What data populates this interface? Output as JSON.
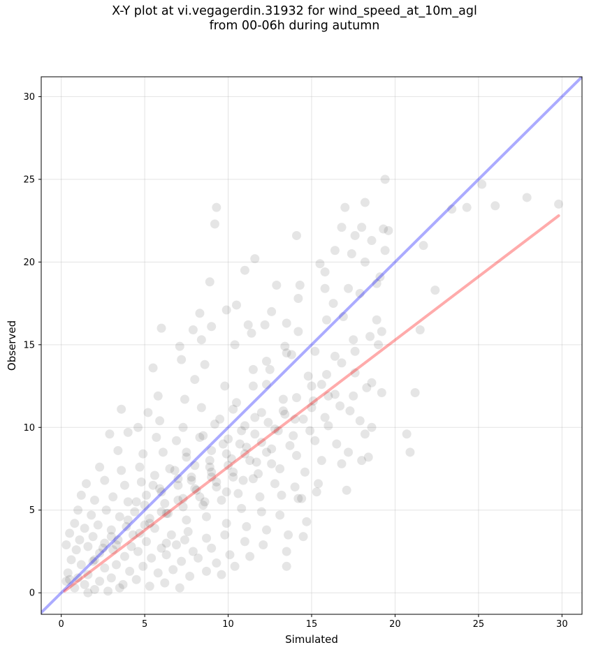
{
  "chart_data": {
    "type": "scatter",
    "title_lines": [
      "X-Y plot at vi.vegagerdin.31932 for wind_speed_at_10m_agl",
      "from 00-06h during autumn"
    ],
    "xlabel": "Simulated",
    "ylabel": "Observed",
    "xlim": [
      -1.2,
      31.2
    ],
    "ylim": [
      -1.3,
      31.2
    ],
    "xticks": [
      0,
      5,
      10,
      15,
      20,
      25,
      30
    ],
    "yticks": [
      0,
      5,
      10,
      15,
      20,
      25,
      30
    ],
    "grid": true,
    "point_color": "#000000",
    "identity_line": {
      "name": "1:1 line",
      "color": "#0000ff",
      "from": [
        -1.2,
        -1.2
      ],
      "to": [
        31.2,
        31.2
      ]
    },
    "fit_line": {
      "name": "regression line",
      "color": "#ff0000",
      "from": [
        0.2,
        0.1
      ],
      "to": [
        29.8,
        22.8
      ]
    },
    "points": [
      [
        23.4,
        23.2
      ],
      [
        24.3,
        23.3
      ],
      [
        19.4,
        25.0
      ],
      [
        25.2,
        24.7
      ],
      [
        26.0,
        23.4
      ],
      [
        27.9,
        23.9
      ],
      [
        29.8,
        23.5
      ],
      [
        22.4,
        18.3
      ],
      [
        21.7,
        21.0
      ],
      [
        21.5,
        15.9
      ],
      [
        21.2,
        12.1
      ],
      [
        20.7,
        9.6
      ],
      [
        20.9,
        8.5
      ],
      [
        18.2,
        23.6
      ],
      [
        17.0,
        23.3
      ],
      [
        9.3,
        23.3
      ],
      [
        9.2,
        22.3
      ],
      [
        14.1,
        21.6
      ],
      [
        11.6,
        20.2
      ],
      [
        11.0,
        19.5
      ],
      [
        8.9,
        18.8
      ],
      [
        12.9,
        18.6
      ],
      [
        19.3,
        22.0
      ],
      [
        19.6,
        21.9
      ],
      [
        18.0,
        22.1
      ],
      [
        16.8,
        22.1
      ],
      [
        17.6,
        21.6
      ],
      [
        18.6,
        21.3
      ],
      [
        16.4,
        20.7
      ],
      [
        17.4,
        20.5
      ],
      [
        19.4,
        20.7
      ],
      [
        18.2,
        20.0
      ],
      [
        19.1,
        19.1
      ],
      [
        15.5,
        19.9
      ],
      [
        15.8,
        19.4
      ],
      [
        14.3,
        18.6
      ],
      [
        17.2,
        18.4
      ],
      [
        17.9,
        18.1
      ],
      [
        15.8,
        18.4
      ],
      [
        18.9,
        18.7
      ],
      [
        9.9,
        17.1
      ],
      [
        10.5,
        17.4
      ],
      [
        14.2,
        17.8
      ],
      [
        16.3,
        17.5
      ],
      [
        12.6,
        17.0
      ],
      [
        13.5,
        16.3
      ],
      [
        16.9,
        16.7
      ],
      [
        18.9,
        16.5
      ],
      [
        8.3,
        16.9
      ],
      [
        9.0,
        16.1
      ],
      [
        11.2,
        16.2
      ],
      [
        12.2,
        16.2
      ],
      [
        15.9,
        16.5
      ],
      [
        6.0,
        16.0
      ],
      [
        7.9,
        15.9
      ],
      [
        11.4,
        15.7
      ],
      [
        14.2,
        15.8
      ],
      [
        17.5,
        15.3
      ],
      [
        18.5,
        15.5
      ],
      [
        19.2,
        15.8
      ],
      [
        19.0,
        15.0
      ],
      [
        7.1,
        14.9
      ],
      [
        8.4,
        15.3
      ],
      [
        10.4,
        15.0
      ],
      [
        13.4,
        14.9
      ],
      [
        15.2,
        14.6
      ],
      [
        16.4,
        14.3
      ],
      [
        13.8,
        14.4
      ],
      [
        12.3,
        14.0
      ],
      [
        5.5,
        13.6
      ],
      [
        7.2,
        14.1
      ],
      [
        8.6,
        13.8
      ],
      [
        11.5,
        13.5
      ],
      [
        14.8,
        13.1
      ],
      [
        15.6,
        12.6
      ],
      [
        17.6,
        13.3
      ],
      [
        18.6,
        12.7
      ],
      [
        19.2,
        12.1
      ],
      [
        8.0,
        12.9
      ],
      [
        9.8,
        12.5
      ],
      [
        12.3,
        12.6
      ],
      [
        13.3,
        11.7
      ],
      [
        15.1,
        11.6
      ],
      [
        16.4,
        12.0
      ],
      [
        17.3,
        11.0
      ],
      [
        5.8,
        11.9
      ],
      [
        3.6,
        11.1
      ],
      [
        5.2,
        10.9
      ],
      [
        7.4,
        11.7
      ],
      [
        8.4,
        11.2
      ],
      [
        10.3,
        11.1
      ],
      [
        11.6,
        10.6
      ],
      [
        13.4,
        10.8
      ],
      [
        14.5,
        10.5
      ],
      [
        16.0,
        10.1
      ],
      [
        17.9,
        10.4
      ],
      [
        18.6,
        10.0
      ],
      [
        18.2,
        9.6
      ],
      [
        4.6,
        10.0
      ],
      [
        5.9,
        10.4
      ],
      [
        7.3,
        10.0
      ],
      [
        9.2,
        10.2
      ],
      [
        10.8,
        9.8
      ],
      [
        12.8,
        9.9
      ],
      [
        13.9,
        9.5
      ],
      [
        15.2,
        9.2
      ],
      [
        16.5,
        9.0
      ],
      [
        17.2,
        8.5
      ],
      [
        18.0,
        8.0
      ],
      [
        18.4,
        8.2
      ],
      [
        2.9,
        9.6
      ],
      [
        4.0,
        9.7
      ],
      [
        5.7,
        9.4
      ],
      [
        6.9,
        9.2
      ],
      [
        8.3,
        9.4
      ],
      [
        9.7,
        9.0
      ],
      [
        11.1,
        8.8
      ],
      [
        12.6,
        8.7
      ],
      [
        14.1,
        8.3
      ],
      [
        15.6,
        8.0
      ],
      [
        16.8,
        7.8
      ],
      [
        3.4,
        8.6
      ],
      [
        4.9,
        8.4
      ],
      [
        6.1,
        8.5
      ],
      [
        7.5,
        8.2
      ],
      [
        8.9,
        8.0
      ],
      [
        10.2,
        8.1
      ],
      [
        11.7,
        7.9
      ],
      [
        13.1,
        7.5
      ],
      [
        14.6,
        7.3
      ],
      [
        15.4,
        6.6
      ],
      [
        17.1,
        6.2
      ],
      [
        2.3,
        7.6
      ],
      [
        3.6,
        7.4
      ],
      [
        4.7,
        7.6
      ],
      [
        5.6,
        7.1
      ],
      [
        6.8,
        7.4
      ],
      [
        7.8,
        7.0
      ],
      [
        9.0,
        7.3
      ],
      [
        10.3,
        7.0
      ],
      [
        11.5,
        6.9
      ],
      [
        12.8,
        6.6
      ],
      [
        14.0,
        6.4
      ],
      [
        15.3,
        6.1
      ],
      [
        1.5,
        6.6
      ],
      [
        2.6,
        6.8
      ],
      [
        3.8,
        6.5
      ],
      [
        4.8,
        6.7
      ],
      [
        5.9,
        6.3
      ],
      [
        7.0,
        6.5
      ],
      [
        8.1,
        6.2
      ],
      [
        9.3,
        6.4
      ],
      [
        10.6,
        6.0
      ],
      [
        11.9,
        5.8
      ],
      [
        13.2,
        5.9
      ],
      [
        14.4,
        5.7
      ],
      [
        1.2,
        5.9
      ],
      [
        2.0,
        5.6
      ],
      [
        3.1,
        5.8
      ],
      [
        4.0,
        5.5
      ],
      [
        5.1,
        5.9
      ],
      [
        6.2,
        5.4
      ],
      [
        7.3,
        5.7
      ],
      [
        8.5,
        5.3
      ],
      [
        9.6,
        5.6
      ],
      [
        10.8,
        5.1
      ],
      [
        12.0,
        4.9
      ],
      [
        13.1,
        4.7
      ],
      [
        14.7,
        4.3
      ],
      [
        1.0,
        5.0
      ],
      [
        1.8,
        4.7
      ],
      [
        2.7,
        5.0
      ],
      [
        3.5,
        4.6
      ],
      [
        4.4,
        4.9
      ],
      [
        5.3,
        4.5
      ],
      [
        6.4,
        4.8
      ],
      [
        7.5,
        4.4
      ],
      [
        8.7,
        4.6
      ],
      [
        9.9,
        4.2
      ],
      [
        11.1,
        4.0
      ],
      [
        12.3,
        3.8
      ],
      [
        13.6,
        3.5
      ],
      [
        14.5,
        3.4
      ],
      [
        0.8,
        4.2
      ],
      [
        1.4,
        3.9
      ],
      [
        2.2,
        4.1
      ],
      [
        3.0,
        3.8
      ],
      [
        3.9,
        4.0
      ],
      [
        4.7,
        3.6
      ],
      [
        5.6,
        3.9
      ],
      [
        6.6,
        3.5
      ],
      [
        7.6,
        3.7
      ],
      [
        8.7,
        3.3
      ],
      [
        9.8,
        3.5
      ],
      [
        11.0,
        3.1
      ],
      [
        12.1,
        2.9
      ],
      [
        13.5,
        2.5
      ],
      [
        0.5,
        3.6
      ],
      [
        1.1,
        3.2
      ],
      [
        1.9,
        3.4
      ],
      [
        2.6,
        3.0
      ],
      [
        3.4,
        3.2
      ],
      [
        4.2,
        2.8
      ],
      [
        5.1,
        3.1
      ],
      [
        6.0,
        2.7
      ],
      [
        6.9,
        2.9
      ],
      [
        7.9,
        2.5
      ],
      [
        9.0,
        2.7
      ],
      [
        10.1,
        2.3
      ],
      [
        11.3,
        2.2
      ],
      [
        0.3,
        2.9
      ],
      [
        0.9,
        2.6
      ],
      [
        1.6,
        2.8
      ],
      [
        2.3,
        2.4
      ],
      [
        3.1,
        2.6
      ],
      [
        3.8,
        2.2
      ],
      [
        4.6,
        2.5
      ],
      [
        5.4,
        2.1
      ],
      [
        6.3,
        2.3
      ],
      [
        7.2,
        1.9
      ],
      [
        8.2,
        2.1
      ],
      [
        9.3,
        1.8
      ],
      [
        10.4,
        1.6
      ],
      [
        0.6,
        2.0
      ],
      [
        1.2,
        1.7
      ],
      [
        1.9,
        1.9
      ],
      [
        2.6,
        1.5
      ],
      [
        3.3,
        1.7
      ],
      [
        4.1,
        1.3
      ],
      [
        4.9,
        1.6
      ],
      [
        5.8,
        1.2
      ],
      [
        6.7,
        1.4
      ],
      [
        7.7,
        1.0
      ],
      [
        8.7,
        1.3
      ],
      [
        9.6,
        1.1
      ],
      [
        0.4,
        1.2
      ],
      [
        1.0,
        0.9
      ],
      [
        1.6,
        1.1
      ],
      [
        2.3,
        0.7
      ],
      [
        3.0,
        0.9
      ],
      [
        3.7,
        0.5
      ],
      [
        4.5,
        0.8
      ],
      [
        5.3,
        0.4
      ],
      [
        6.2,
        0.6
      ],
      [
        7.1,
        0.3
      ],
      [
        0.3,
        0.7
      ],
      [
        0.8,
        0.3
      ],
      [
        1.4,
        0.5
      ],
      [
        2.0,
        0.2
      ],
      [
        2.8,
        0.1
      ],
      [
        3.5,
        0.3
      ],
      [
        1.6,
        0.0
      ],
      [
        0.5,
        0.8
      ],
      [
        13.5,
        1.6
      ],
      [
        14.2,
        5.7
      ],
      [
        6.3,
        3.0
      ],
      [
        7.4,
        3.2
      ],
      [
        8.6,
        5.5
      ],
      [
        9.9,
        6.1
      ],
      [
        10.9,
        6.8
      ],
      [
        11.8,
        7.2
      ],
      [
        12.6,
        7.8
      ],
      [
        13.7,
        8.9
      ],
      [
        14.9,
        9.8
      ],
      [
        15.8,
        10.6
      ],
      [
        16.7,
        11.3
      ],
      [
        17.5,
        11.9
      ],
      [
        18.3,
        12.4
      ],
      [
        7.8,
        6.8
      ],
      [
        8.9,
        7.6
      ],
      [
        9.9,
        8.4
      ],
      [
        10.7,
        9.0
      ],
      [
        11.6,
        9.6
      ],
      [
        12.4,
        10.3
      ],
      [
        13.3,
        11.0
      ],
      [
        14.1,
        11.8
      ],
      [
        15.0,
        12.5
      ],
      [
        15.9,
        13.2
      ],
      [
        16.8,
        13.9
      ],
      [
        17.6,
        14.6
      ],
      [
        5.0,
        4.1
      ],
      [
        6.0,
        4.9
      ],
      [
        7.0,
        5.6
      ],
      [
        8.0,
        6.3
      ],
      [
        9.0,
        7.0
      ],
      [
        10.0,
        7.7
      ],
      [
        11.0,
        8.4
      ],
      [
        12.0,
        9.1
      ],
      [
        13.0,
        9.8
      ],
      [
        14.0,
        10.5
      ],
      [
        15.0,
        11.2
      ],
      [
        16.0,
        11.9
      ],
      [
        4.5,
        5.5
      ],
      [
        5.5,
        6.5
      ],
      [
        6.5,
        7.5
      ],
      [
        7.5,
        8.5
      ],
      [
        8.5,
        9.5
      ],
      [
        9.5,
        10.5
      ],
      [
        10.5,
        11.5
      ],
      [
        11.5,
        12.5
      ],
      [
        12.5,
        13.5
      ],
      [
        13.5,
        14.5
      ],
      [
        3.0,
        3.4
      ],
      [
        4.0,
        4.4
      ],
      [
        5.0,
        5.3
      ],
      [
        6.0,
        6.1
      ],
      [
        7.0,
        6.9
      ],
      [
        8.0,
        7.7
      ],
      [
        9.0,
        8.6
      ],
      [
        10.0,
        9.3
      ],
      [
        11.0,
        10.1
      ],
      [
        12.0,
        10.9
      ],
      [
        2.0,
        2.0
      ],
      [
        2.5,
        2.7
      ],
      [
        3.3,
        2.9
      ],
      [
        4.3,
        3.5
      ],
      [
        5.3,
        4.2
      ],
      [
        6.3,
        4.8
      ],
      [
        7.3,
        5.2
      ],
      [
        8.3,
        5.8
      ],
      [
        9.3,
        6.7
      ],
      [
        10.3,
        7.3
      ],
      [
        11.3,
        8.0
      ],
      [
        12.3,
        8.5
      ]
    ]
  }
}
